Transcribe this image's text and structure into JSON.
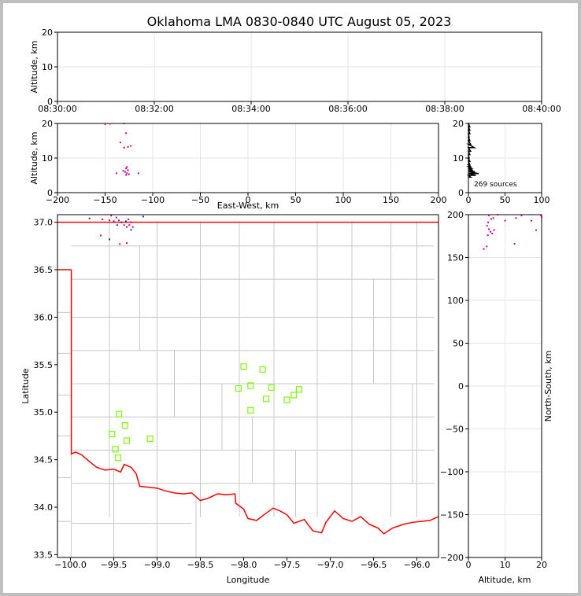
{
  "chart_data": [
    {
      "type": "scatter",
      "panel": "time-height",
      "title": "Oklahoma LMA 0830-0840 UTC August 05, 2023",
      "ylabel": "Altitude, km",
      "xlim": [
        "08:30:00",
        "08:40:00"
      ],
      "ylim": [
        0,
        20
      ],
      "xticks": [
        "08:30:00",
        "08:32:00",
        "08:34:00",
        "08:36:00",
        "08:38:00",
        "08:40:00"
      ],
      "yticks": [
        "0",
        "10",
        "20"
      ],
      "points": []
    },
    {
      "type": "scatter",
      "panel": "east-west-altitude",
      "xlabel": "East-West, km",
      "ylabel": "Altitude, km",
      "xlim": [
        -200,
        200
      ],
      "ylim": [
        0,
        20
      ],
      "xticks": [
        "−200",
        "−150",
        "−100",
        "−50",
        "0",
        "50",
        "100",
        "150",
        "200"
      ],
      "yticks": [
        "0",
        "10",
        "20"
      ],
      "points": [
        [
          -128,
          5.1
        ],
        [
          -127,
          5.6
        ],
        [
          -129,
          6.0
        ],
        [
          -126,
          6.5
        ],
        [
          -128,
          7.0
        ],
        [
          -127,
          7.4
        ],
        [
          -131,
          6.3
        ],
        [
          -125,
          5.3
        ],
        [
          -138,
          5.6
        ],
        [
          -115,
          5.6
        ],
        [
          -130,
          13.0
        ],
        [
          -126,
          13.2
        ],
        [
          -123,
          13.5
        ],
        [
          -134,
          14.5
        ],
        [
          -128,
          17.2
        ],
        [
          -150,
          19.8
        ],
        [
          -130,
          20.0
        ],
        [
          -145,
          19.9
        ]
      ]
    },
    {
      "type": "histogram",
      "panel": "altitude-histogram",
      "annotation": "269 sources",
      "xlim": [
        0,
        100
      ],
      "ylim": [
        0,
        20
      ],
      "xticks": [
        "0",
        "50",
        "100"
      ],
      "yticks": [
        "0",
        "10",
        "20"
      ],
      "bins": [
        [
          4.5,
          3
        ],
        [
          5.0,
          10
        ],
        [
          5.5,
          14
        ],
        [
          6.0,
          9
        ],
        [
          6.5,
          6
        ],
        [
          7.0,
          4
        ],
        [
          7.5,
          3
        ],
        [
          8.0,
          2
        ],
        [
          9.0,
          2
        ],
        [
          10.0,
          1
        ],
        [
          11.0,
          2
        ],
        [
          12.0,
          3
        ],
        [
          13.0,
          8
        ],
        [
          14.0,
          3
        ],
        [
          15.0,
          2
        ],
        [
          16.0,
          1
        ],
        [
          17.0,
          2
        ],
        [
          18.0,
          2
        ],
        [
          19.0,
          2
        ],
        [
          20.0,
          1
        ]
      ]
    },
    {
      "type": "scatter",
      "panel": "plan-view",
      "xlabel": "Longitude",
      "ylabel": "Latitude",
      "xlim": [
        -100.15,
        -95.75
      ],
      "ylim": [
        33.47,
        37.08
      ],
      "xticks": [
        "−100.0",
        "−99.5",
        "−99.0",
        "−98.5",
        "−98.0",
        "−97.5",
        "−97.0",
        "−96.5",
        "−96.0"
      ],
      "yticks": [
        "33.5",
        "34.0",
        "34.5",
        "35.0",
        "35.5",
        "36.0",
        "36.5",
        "37.0"
      ],
      "sources": [
        [
          -99.78,
          37.04
        ],
        [
          -99.63,
          37.03
        ],
        [
          -99.53,
          37.07
        ],
        [
          -99.5,
          37.01
        ],
        [
          -99.47,
          37.05
        ],
        [
          -99.44,
          37.02
        ],
        [
          -99.41,
          37.0
        ],
        [
          -99.38,
          36.97
        ],
        [
          -99.35,
          36.95
        ],
        [
          -99.36,
          37.01
        ],
        [
          -99.33,
          37.03
        ],
        [
          -99.32,
          36.97
        ],
        [
          -99.3,
          36.92
        ],
        [
          -99.28,
          36.95
        ],
        [
          -99.3,
          37.0
        ],
        [
          -99.46,
          36.97
        ],
        [
          -99.55,
          37.02
        ],
        [
          -99.65,
          36.86
        ],
        [
          -99.55,
          36.82
        ],
        [
          -99.43,
          36.77
        ],
        [
          -99.35,
          36.78
        ],
        [
          -99.16,
          37.06
        ]
      ],
      "stations": [
        [
          -99.44,
          34.98
        ],
        [
          -99.37,
          34.86
        ],
        [
          -99.52,
          34.77
        ],
        [
          -99.35,
          34.7
        ],
        [
          -99.48,
          34.61
        ],
        [
          -99.45,
          34.52
        ],
        [
          -99.08,
          34.72
        ],
        [
          -98.0,
          35.48
        ],
        [
          -97.78,
          35.45
        ],
        [
          -98.06,
          35.25
        ],
        [
          -97.92,
          35.28
        ],
        [
          -97.68,
          35.26
        ],
        [
          -97.36,
          35.24
        ],
        [
          -97.42,
          35.18
        ],
        [
          -97.74,
          35.14
        ],
        [
          -97.5,
          35.13
        ],
        [
          -97.92,
          35.02
        ]
      ],
      "colors": {
        "border": "#ff0000",
        "county": "#c8c8c8",
        "station": "#7cfc00",
        "source": "#cc0088",
        "source_early": "#1e2c9a"
      }
    },
    {
      "type": "scatter",
      "panel": "altitude-north-south",
      "xlabel": "Altitude, km",
      "ylabel": "North-South, km",
      "xlim": [
        0,
        20
      ],
      "ylim": [
        -200,
        200
      ],
      "xticks": [
        "0",
        "10",
        "20"
      ],
      "yticks": [
        "−200",
        "−150",
        "−100",
        "−50",
        "0",
        "50",
        "100",
        "150",
        "200"
      ],
      "points": [
        [
          5.1,
          187
        ],
        [
          5.6,
          183
        ],
        [
          6.0,
          180
        ],
        [
          6.5,
          178
        ],
        [
          7.0,
          182
        ],
        [
          5.3,
          176
        ],
        [
          5.4,
          191
        ],
        [
          6.2,
          195
        ],
        [
          5.6,
          199
        ],
        [
          4.2,
          160
        ],
        [
          5.0,
          163
        ],
        [
          12.6,
          166
        ],
        [
          10.0,
          193
        ],
        [
          13.0,
          196
        ],
        [
          14.5,
          199
        ],
        [
          17.2,
          193
        ],
        [
          19.8,
          199
        ],
        [
          20.0,
          197
        ],
        [
          18.5,
          182
        ],
        [
          8.0,
          200
        ],
        [
          6.8,
          196
        ]
      ]
    }
  ]
}
